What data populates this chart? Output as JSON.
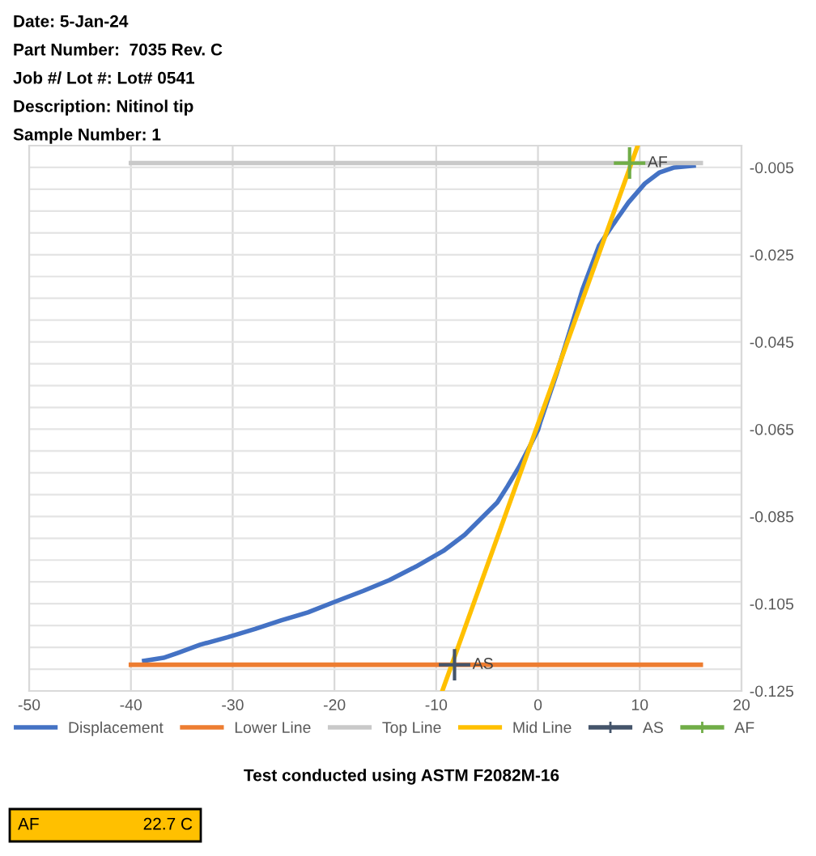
{
  "chart_data": {
    "type": "line",
    "series": [
      {
        "name": "Displacement",
        "color": "#4472c4",
        "x": [
          -38.7,
          -36.8,
          -35.3,
          -33.2,
          -30.5,
          -27.8,
          -25.2,
          -22.6,
          -19.9,
          -17.2,
          -14.6,
          -12.0,
          -9.3,
          -7.2,
          -5.6,
          -4.0,
          -3.0,
          -1.9,
          -0.8,
          0.0,
          0.2,
          1.8,
          3.1,
          4.4,
          6.0,
          7.4,
          8.9,
          10.5,
          11.9,
          13.4,
          15.3
        ],
        "values": [
          -0.1181,
          -0.1174,
          -0.1162,
          -0.1144,
          -0.1127,
          -0.1108,
          -0.1088,
          -0.107,
          -0.1045,
          -0.1021,
          -0.0996,
          -0.0965,
          -0.0929,
          -0.0892,
          -0.0855,
          -0.0818,
          -0.0781,
          -0.0738,
          -0.0689,
          -0.0652,
          -0.0636,
          -0.0525,
          -0.0427,
          -0.0328,
          -0.0229,
          -0.018,
          -0.013,
          -0.0087,
          -0.0062,
          -0.005,
          -0.0046
        ]
      },
      {
        "name": "Lower Line",
        "color": "#ed7d31",
        "x": [
          -40,
          16
        ],
        "values": [
          -0.119,
          -0.119
        ]
      },
      {
        "name": "Top Line",
        "color": "#c9c9c9",
        "x": [
          -40,
          16
        ],
        "values": [
          -0.004,
          -0.004
        ]
      },
      {
        "name": "Mid Line",
        "color": "#ffc000",
        "x": [
          -9.4,
          9.8
        ],
        "values": [
          -0.125,
          0.0
        ]
      },
      {
        "name": "AS",
        "color": "#44546a",
        "marker": "cross",
        "x": [
          -8.2
        ],
        "values": [
          -0.119
        ]
      },
      {
        "name": "AF",
        "color": "#70ad47",
        "marker": "cross",
        "x": [
          9.0
        ],
        "values": [
          -0.004
        ]
      }
    ],
    "xlim": [
      -50,
      20
    ],
    "xticks": [
      -50,
      -40,
      -30,
      -20,
      -10,
      0,
      10,
      20
    ],
    "ylim": [
      -0.125,
      0.0
    ],
    "yticks": [
      -0.125,
      -0.105,
      -0.085,
      -0.065,
      -0.045,
      -0.025,
      -0.005
    ],
    "grid": true,
    "legend": "bottom",
    "annotations": [
      "Date: 5-Jan-24",
      "Part Number:  7035 Rev. C",
      "Job #/ Lot #: Lot# 0541",
      "Description: Nitinol tip",
      "Sample Number: 1",
      "Test conducted using ASTM F2082M-16",
      "AF",
      "22.7 C",
      {
        "text": "AS",
        "x": -8.2,
        "y": -0.119
      },
      {
        "text": "AF",
        "x": 9.0,
        "y": -0.004
      }
    ]
  }
}
